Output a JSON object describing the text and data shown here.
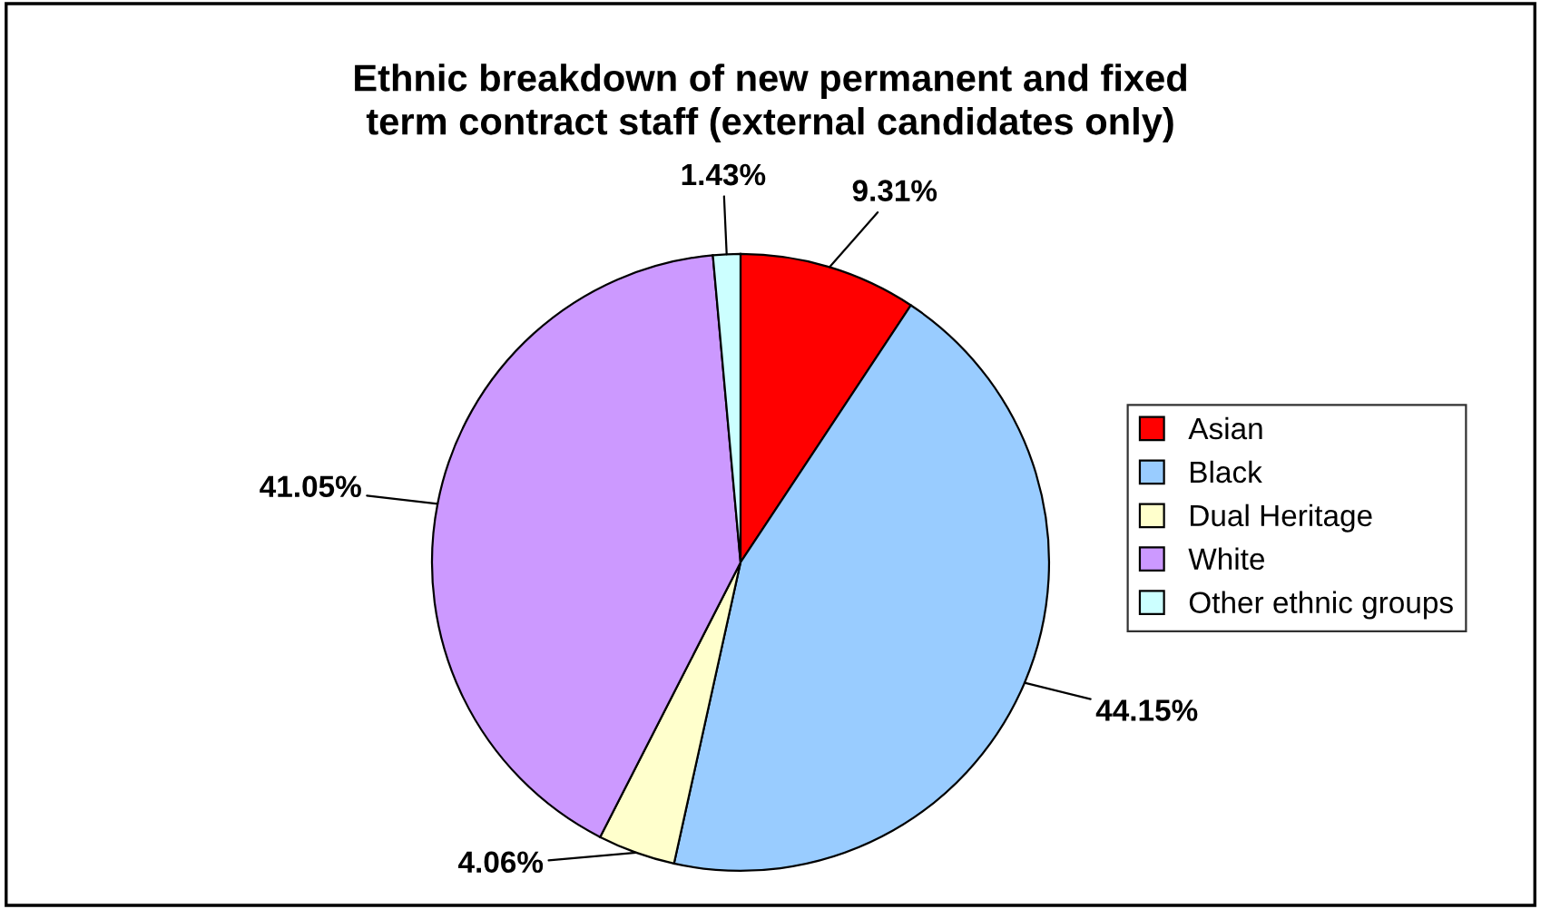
{
  "chart_data": {
    "type": "pie",
    "title": "Ethnic breakdown of new permanent and fixed\nterm contract staff (external candidates only)",
    "categories": [
      "Asian",
      "Black",
      "Dual Heritage",
      "White",
      "Other ethnic groups"
    ],
    "values": [
      9.31,
      44.15,
      4.06,
      41.05,
      1.43
    ],
    "colors": [
      "#ff0000",
      "#99ccff",
      "#ffffcc",
      "#cc99ff",
      "#ccffff"
    ],
    "value_labels": [
      "9.31%",
      "44.15%",
      "4.06%",
      "41.05%",
      "1.43%"
    ],
    "legend": "right"
  }
}
